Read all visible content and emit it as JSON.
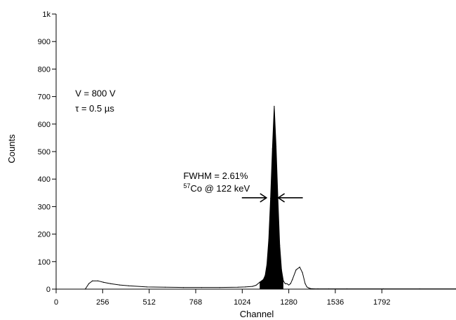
{
  "chart_data": {
    "type": "line",
    "xlabel": "Channel",
    "ylabel": "Counts",
    "xlim": [
      0,
      2200
    ],
    "ylim": [
      0,
      1000
    ],
    "x_ticks": [
      {
        "value": 0,
        "label": "0"
      },
      {
        "value": 256,
        "label": "256"
      },
      {
        "value": 512,
        "label": "512"
      },
      {
        "value": 768,
        "label": "768"
      },
      {
        "value": 1024,
        "label": "1024"
      },
      {
        "value": 1280,
        "label": "1280"
      },
      {
        "value": 1536,
        "label": "1536"
      },
      {
        "value": 1792,
        "label": "1792"
      }
    ],
    "y_ticks": [
      {
        "value": 0,
        "label": "0"
      },
      {
        "value": 100,
        "label": "100"
      },
      {
        "value": 200,
        "label": "200"
      },
      {
        "value": 300,
        "label": "300"
      },
      {
        "value": 400,
        "label": "400"
      },
      {
        "value": 500,
        "label": "500"
      },
      {
        "value": 600,
        "label": "600"
      },
      {
        "value": 700,
        "label": "700"
      },
      {
        "value": 800,
        "label": "800"
      },
      {
        "value": 900,
        "label": "900"
      },
      {
        "value": 1000,
        "label": "1k"
      }
    ],
    "grid": false,
    "series": [
      {
        "x": [
          0,
          160,
          180,
          200,
          230,
          260,
          300,
          350,
          400,
          500,
          600,
          700,
          800,
          900,
          1000,
          1040,
          1080,
          1100,
          1120,
          1140,
          1150,
          1160,
          1170,
          1180,
          1190,
          1200,
          1210,
          1220,
          1230,
          1240,
          1250,
          1260,
          1270,
          1280,
          1290,
          1300,
          1320,
          1340,
          1355,
          1370,
          1380,
          1390,
          1400,
          1420,
          1440,
          1500,
          1600,
          1800,
          2000,
          2200
        ],
        "values": [
          0,
          0,
          20,
          30,
          30,
          25,
          20,
          15,
          12,
          8,
          7,
          6,
          6,
          6,
          7,
          8,
          10,
          14,
          25,
          35,
          50,
          90,
          180,
          330,
          510,
          665,
          520,
          330,
          160,
          70,
          30,
          20,
          20,
          15,
          20,
          35,
          70,
          80,
          60,
          20,
          8,
          4,
          2,
          1,
          1,
          1,
          1,
          1,
          1,
          1
        ],
        "color": "#000000"
      }
    ],
    "shaded_region": {
      "x_start": 1120,
      "x_end": 1250,
      "color": "#000000"
    },
    "annotations": [
      {
        "text": "V = 800 V",
        "x": 105,
        "y": 700
      },
      {
        "text": "τ = 0.5 µs",
        "x": 105,
        "y": 645
      },
      {
        "text": "FWHM = 2.61%",
        "x": 700,
        "y": 400
      },
      {
        "superscript": "57",
        "text": "Co @ 122 keV",
        "x": 700,
        "y": 355
      }
    ],
    "fwhm_marker": {
      "y": 332,
      "left_arrow_tip_x": 1157,
      "right_arrow_tip_x": 1222
    }
  }
}
